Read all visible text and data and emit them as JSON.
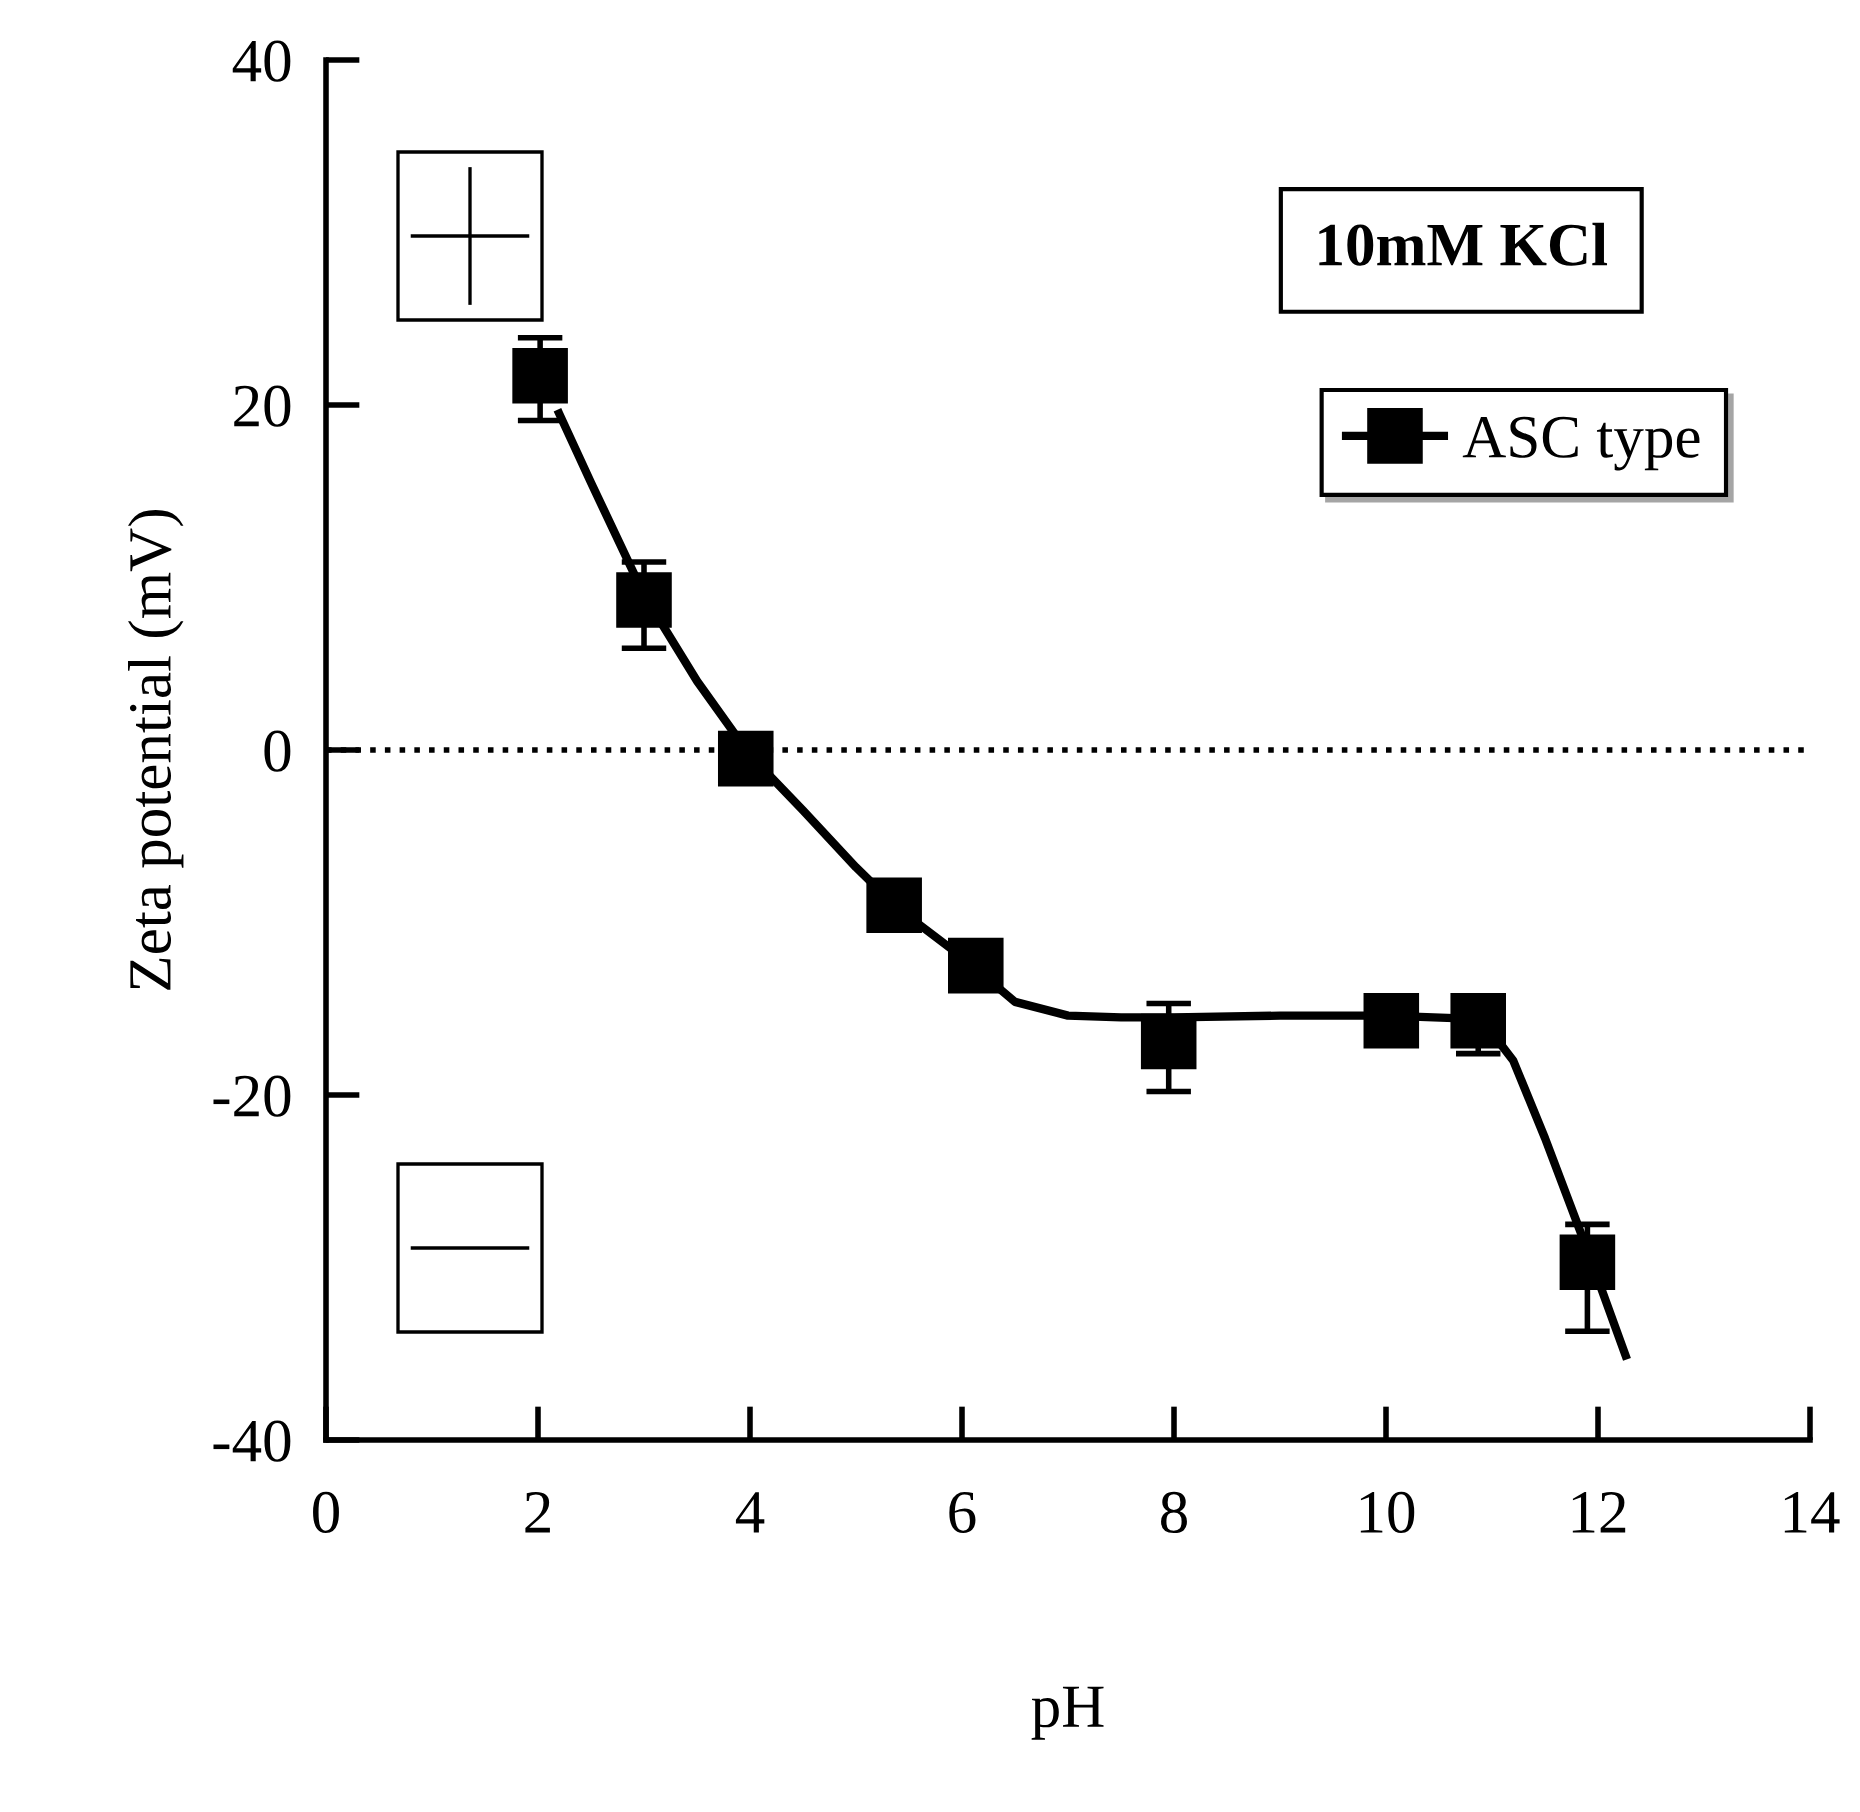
{
  "chart_data": {
    "type": "scatter",
    "xlabel": "pH",
    "ylabel": "Zeta potential (mV)",
    "xlim": [
      0,
      14
    ],
    "ylim": [
      -40,
      40
    ],
    "xticks": [
      0,
      2,
      4,
      6,
      8,
      10,
      12,
      14
    ],
    "yticks": [
      -40,
      -20,
      0,
      20,
      40
    ],
    "grid": false,
    "legend": "top right",
    "annotations": [
      "10mM KCl"
    ],
    "ref_lines": [
      {
        "axis": "y",
        "value": 0,
        "label": null,
        "color": "#000000",
        "line_style": "dotted"
      }
    ],
    "series": [
      {
        "name": "ASC type",
        "marker": "square",
        "color": "#000000",
        "x": [
          2.02,
          3.0,
          3.96,
          5.36,
          6.13,
          7.95,
          10.05,
          10.87,
          11.9
        ],
        "values": [
          21.7,
          8.7,
          -0.5,
          -9.0,
          -12.5,
          -16.9,
          -15.7,
          -15.7,
          -29.7
        ],
        "errors": [
          [
            19.1,
            23.9
          ],
          [
            5.9,
            10.9
          ],
          null,
          null,
          null,
          [
            -19.8,
            -14.7
          ],
          null,
          [
            -17.6,
            -15.7
          ],
          [
            -33.7,
            -27.5
          ]
        ]
      },
      {
        "type": "line",
        "color": "#000000",
        "line_style": "solid",
        "x": [
          2.2,
          2.5,
          3.0,
          3.5,
          4.0,
          4.5,
          5.0,
          5.4,
          6.0,
          6.5,
          7.0,
          7.5,
          8.0,
          9.0,
          10.0,
          10.9,
          11.2,
          11.5,
          11.9,
          12.26
        ],
        "values": [
          19.5,
          15.5,
          9.0,
          4.0,
          -0.3,
          -3.5,
          -6.8,
          -9.2,
          -12.0,
          -14.6,
          -15.4,
          -15.5,
          -15.5,
          -15.4,
          -15.4,
          -15.6,
          -18.0,
          -22.5,
          -29.0,
          -35.1
        ]
      }
    ]
  }
}
